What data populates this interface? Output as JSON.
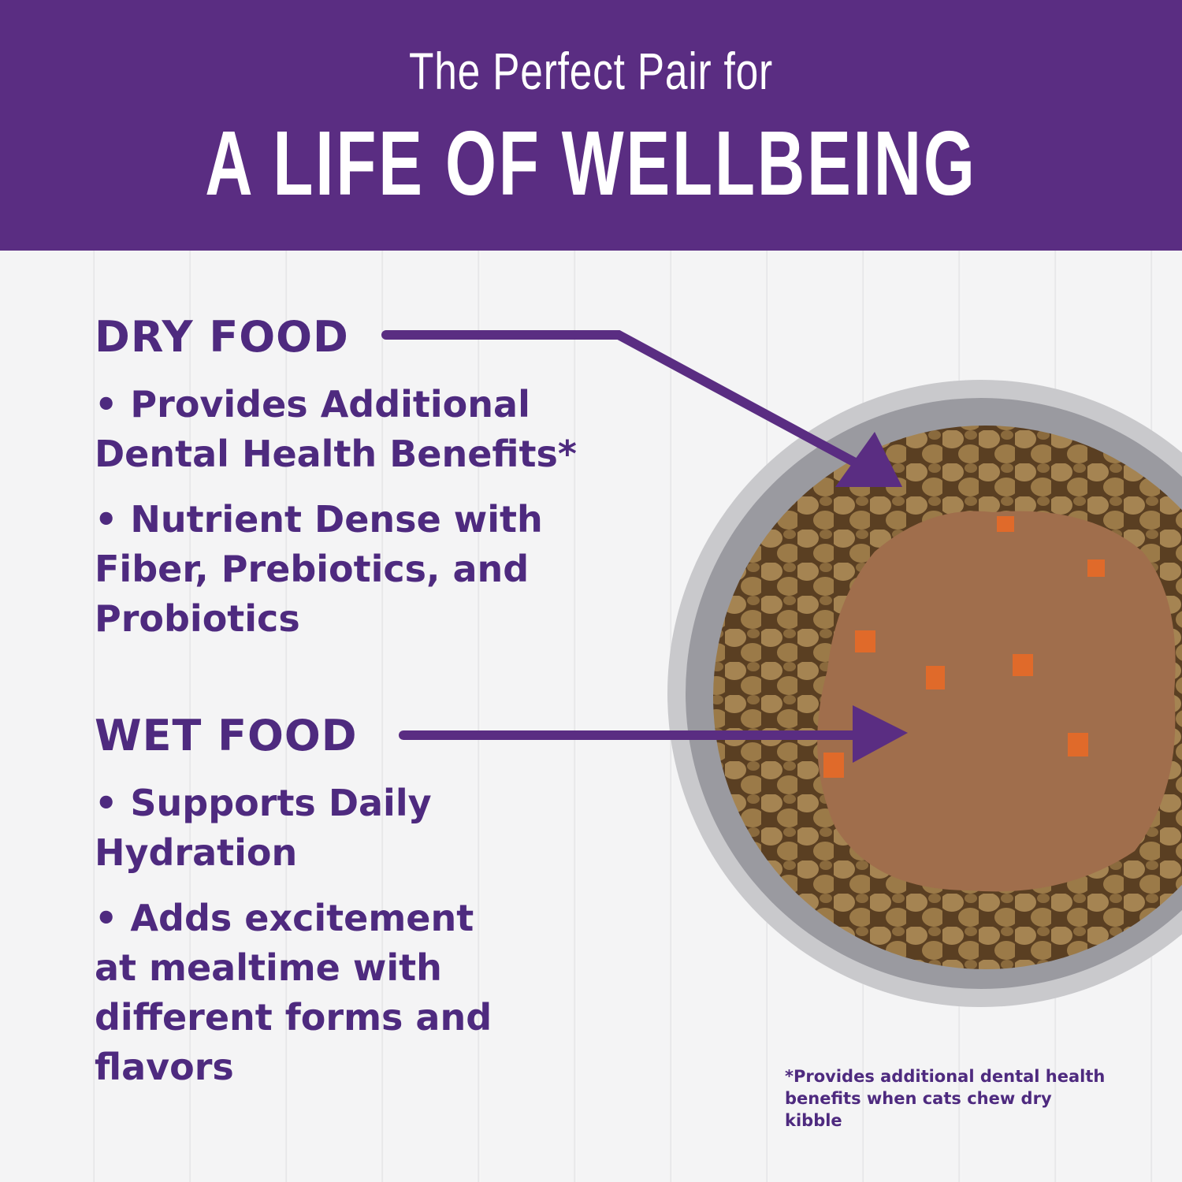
{
  "header": {
    "subtitle": "The Perfect Pair for",
    "title": "A LIFE OF WELLBEING"
  },
  "dry_food": {
    "heading": "DRY FOOD",
    "bullets": [
      "• Provides Additional Dental Health Benefits*",
      "• Nutrient Dense with Fiber, Prebiotics, and Probiotics"
    ]
  },
  "wet_food": {
    "heading": "WET FOOD",
    "bullets": [
      "• Supports Daily Hydration",
      "• Adds excitement at mealtime with different forms and flavors"
    ]
  },
  "footnote": "*Provides additional dental health benefits when cats chew dry kibble",
  "colors": {
    "brand_purple": "#5a2d82",
    "text_purple": "#4e2a7f"
  }
}
